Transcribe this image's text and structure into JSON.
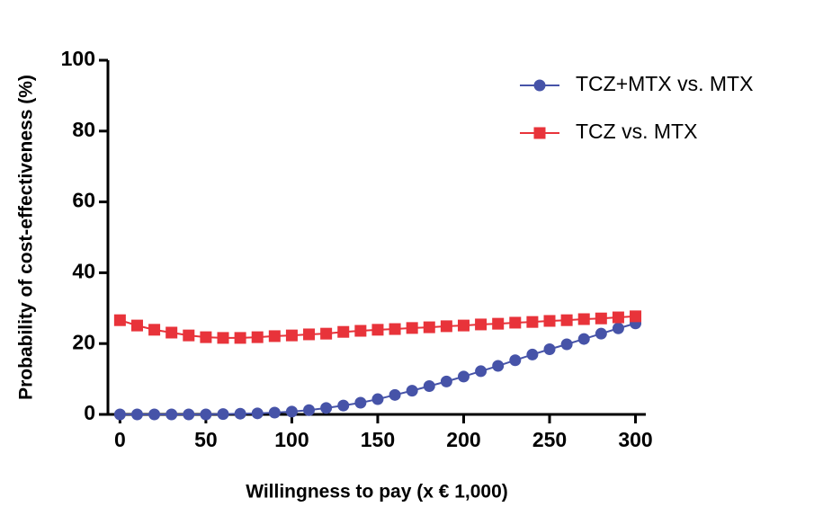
{
  "chart_data": {
    "type": "line",
    "xlabel": "Willingness to pay (x € 1,000)",
    "ylabel": "Probability of cost-effectiveness (%)",
    "x": [
      0,
      10,
      20,
      30,
      40,
      50,
      60,
      70,
      80,
      90,
      100,
      110,
      120,
      130,
      140,
      150,
      160,
      170,
      180,
      190,
      200,
      210,
      220,
      230,
      240,
      250,
      260,
      270,
      280,
      290,
      300
    ],
    "series": [
      {
        "name": "TCZ+MTX vs. MTX",
        "color": "#4653a8",
        "marker": "circle",
        "values": [
          0,
          0,
          0,
          0,
          0,
          0,
          0.1,
          0.2,
          0.3,
          0.5,
          0.8,
          1.2,
          1.8,
          2.5,
          3.3,
          4.3,
          5.5,
          6.7,
          8.0,
          9.3,
          10.7,
          12.2,
          13.7,
          15.3,
          16.9,
          18.4,
          19.8,
          21.3,
          22.8,
          24.3,
          25.7
        ]
      },
      {
        "name": "TCZ vs. MTX",
        "color": "#e8333a",
        "marker": "square",
        "values": [
          26.6,
          25.1,
          23.9,
          23.1,
          22.3,
          21.8,
          21.6,
          21.6,
          21.8,
          22.1,
          22.3,
          22.6,
          22.8,
          23.3,
          23.6,
          23.9,
          24.1,
          24.4,
          24.6,
          24.9,
          25.1,
          25.4,
          25.6,
          25.9,
          26.1,
          26.4,
          26.6,
          26.9,
          27.1,
          27.4,
          27.7
        ]
      }
    ],
    "xlim": [
      -7,
      306
    ],
    "xticks": [
      0,
      50,
      100,
      150,
      200,
      250,
      300
    ],
    "ylim": [
      0,
      100
    ],
    "yticks": [
      0,
      20,
      40,
      60,
      80,
      100
    ],
    "legend": "top-right",
    "grid": false
  }
}
